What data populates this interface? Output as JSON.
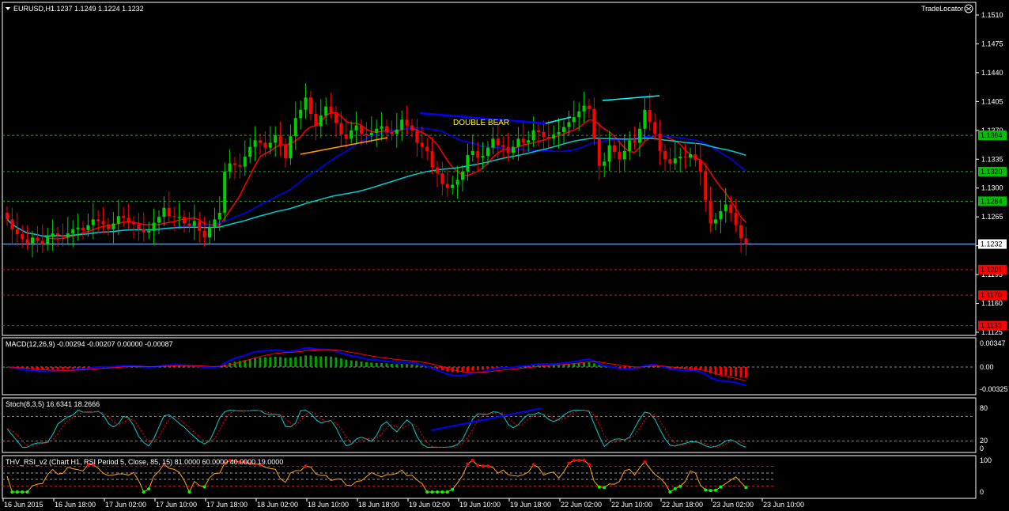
{
  "header": {
    "symbol": "EURUSD,H1",
    "ohlc": "1.1237 1.1249 1.1224 1.1232"
  },
  "brand": {
    "label": "TradeLocator"
  },
  "chart_data": [
    {
      "type": "candlestick",
      "price_ticks": [
        "1.1510",
        "1.1475",
        "1.1440",
        "1.1405",
        "1.1370",
        "1.1335",
        "1.1300",
        "1.1265",
        "1.1230",
        "1.1195",
        "1.1160",
        "1.1125"
      ],
      "ylim": [
        1.1125,
        1.152
      ],
      "levels": [
        {
          "value": 1.1364,
          "label": "1.1364",
          "color": "#00c000"
        },
        {
          "value": 1.132,
          "label": "1.1320",
          "color": "#00c000"
        },
        {
          "value": 1.1284,
          "label": "1.1284",
          "color": "#00c000"
        },
        {
          "value": 1.1201,
          "label": "1.1201",
          "color": "#ff0000"
        },
        {
          "value": 1.117,
          "label": "1.1170",
          "color": "#ff0000"
        },
        {
          "value": 1.1133,
          "label": "1.1133",
          "color": "#ff0000"
        }
      ],
      "current_price": {
        "value": 1.1232,
        "label": "1.1232"
      },
      "annotation": "DOUBLE BEAR",
      "closes": [
        1.1262,
        1.125,
        1.1244,
        1.1238,
        1.1233,
        1.124,
        1.1236,
        1.1232,
        1.1241,
        1.1245,
        1.1243,
        1.124,
        1.1245,
        1.125,
        1.1252,
        1.1249,
        1.1255,
        1.1262,
        1.126,
        1.1256,
        1.125,
        1.1257,
        1.1266,
        1.1264,
        1.1258,
        1.1256,
        1.125,
        1.1246,
        1.1248,
        1.1258,
        1.1265,
        1.1276,
        1.1266,
        1.1265,
        1.1265,
        1.1257,
        1.1254,
        1.126,
        1.1248,
        1.124,
        1.1253,
        1.1262,
        1.127,
        1.132,
        1.133,
        1.1328,
        1.1326,
        1.1338,
        1.135,
        1.1358,
        1.1355,
        1.1349,
        1.1355,
        1.1364,
        1.1352,
        1.1336,
        1.1363,
        1.1385,
        1.1395,
        1.141,
        1.139,
        1.1375,
        1.1388,
        1.1399,
        1.1392,
        1.1379,
        1.1365,
        1.136,
        1.137,
        1.1376,
        1.1366,
        1.1364,
        1.1367,
        1.1372,
        1.1375,
        1.1368,
        1.1366,
        1.1371,
        1.1383,
        1.1376,
        1.137,
        1.1355,
        1.135,
        1.1345,
        1.1325,
        1.1318,
        1.1305,
        1.13,
        1.1304,
        1.131,
        1.132,
        1.134,
        1.1345,
        1.1337,
        1.1339,
        1.1349,
        1.136,
        1.1352,
        1.135,
        1.1343,
        1.135,
        1.136,
        1.1355,
        1.1358,
        1.137,
        1.1368,
        1.1362,
        1.136,
        1.1365,
        1.1368,
        1.1374,
        1.138,
        1.1386,
        1.1393,
        1.14,
        1.1396,
        1.136,
        1.1327,
        1.1332,
        1.1352,
        1.1344,
        1.1335,
        1.1345,
        1.1358,
        1.1355,
        1.1372,
        1.1395,
        1.138,
        1.1366,
        1.1345,
        1.1335,
        1.133,
        1.1336,
        1.1338,
        1.1337,
        1.1341,
        1.1334,
        1.132,
        1.1285,
        1.1257,
        1.1262,
        1.1272,
        1.128,
        1.127,
        1.1255,
        1.1239,
        1.1232
      ]
    },
    {
      "type": "line",
      "name": "MACD(12,26,9) -0.00294 -0.00207 0.00000 -0.00087",
      "ticks": [
        "0.00347",
        "0.00",
        "-0.00325"
      ],
      "ylim": [
        -0.00325,
        0.00347
      ]
    },
    {
      "type": "line",
      "name": "Stoch(8,3,5) 16.6341 18.2666",
      "ticks": [
        "80",
        "20",
        "0"
      ],
      "ylim": [
        0,
        100
      ]
    },
    {
      "type": "line",
      "name": "THV_RSI_v2 (Chart H1, RSI Period 5, Close, 85, 15) 81.0000 60.0000 40.0000 19.0000",
      "ticks": [
        "100",
        "0"
      ],
      "ylim": [
        0,
        100
      ]
    }
  ],
  "time_labels": [
    "16 Jun 2015",
    "16 Jun 18:00",
    "17 Jun 02:00",
    "17 Jun 10:00",
    "17 Jun 18:00",
    "18 Jun 02:00",
    "18 Jun 10:00",
    "18 Jun 18:00",
    "19 Jun 02:00",
    "19 Jun 10:00",
    "19 Jun 18:00",
    "22 Jun 02:00",
    "22 Jun 10:00",
    "22 Jun 18:00",
    "23 Jun 02:00",
    "23 Jun 10:00"
  ],
  "colors": {
    "bull": "#00d000",
    "bear": "#ff0000",
    "ma_fast": "#ff0000",
    "ma_mid": "#0000ff",
    "ma_slow": "#00cccc",
    "grid": "#ffffff"
  }
}
